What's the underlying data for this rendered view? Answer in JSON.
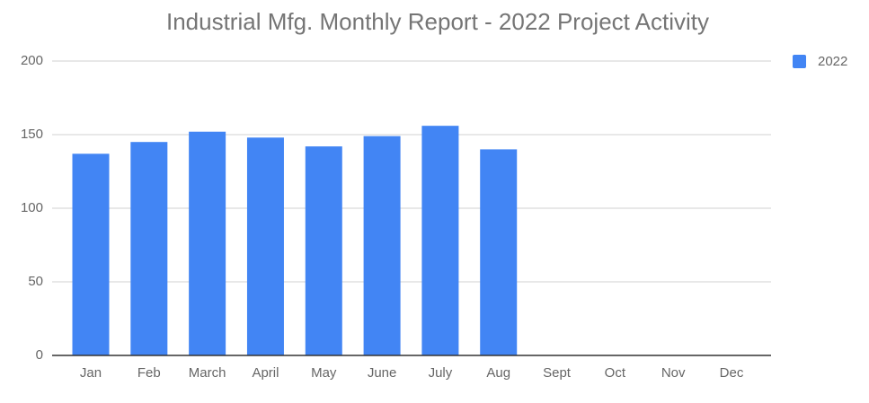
{
  "chart_data": {
    "type": "bar",
    "title": "Industrial Mfg. Monthly Report - 2022 Project Activity",
    "categories": [
      "Jan",
      "Feb",
      "March",
      "April",
      "May",
      "June",
      "July",
      "Aug",
      "Sept",
      "Oct",
      "Nov",
      "Dec"
    ],
    "series": [
      {
        "name": "2022",
        "color": "#4285f4",
        "values": [
          137,
          145,
          152,
          148,
          142,
          149,
          156,
          140,
          null,
          null,
          null,
          null
        ]
      }
    ],
    "ylim": [
      0,
      200
    ],
    "yticks": [
      0,
      50,
      100,
      150,
      200
    ],
    "grid": true,
    "legend": "right"
  }
}
